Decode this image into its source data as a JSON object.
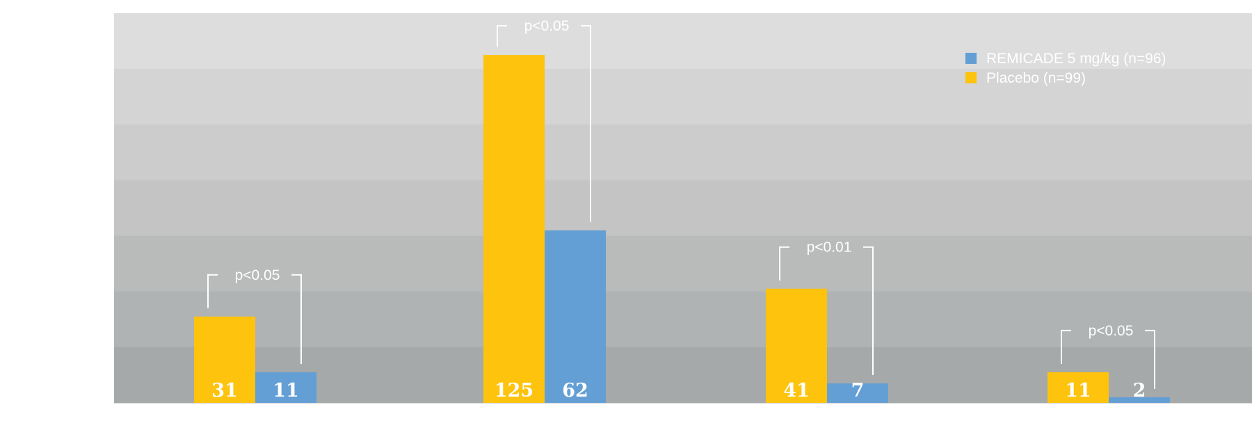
{
  "chart_data": {
    "type": "bar",
    "title": "",
    "xlabel": "",
    "ylabel": "",
    "ylim": [
      0,
      140
    ],
    "grid": true,
    "legend_position": "top-right",
    "groups": 4,
    "series": [
      {
        "name": "Placebo (n=99)",
        "color": "#FDC30D",
        "values": [
          31,
          125,
          41,
          11
        ]
      },
      {
        "name": "REMICADE 5 mg/kg (n=96)",
        "color": "#639FD5",
        "values": [
          11,
          62,
          7,
          2
        ]
      }
    ],
    "legend_order": [
      1,
      0
    ],
    "value_labels": [
      [
        "31",
        "11"
      ],
      [
        "125",
        "62"
      ],
      [
        "41",
        "7"
      ],
      [
        "11",
        "2"
      ]
    ],
    "significance": [
      "p<0.05",
      "p<0.05",
      "p<0.01",
      "p<0.05"
    ]
  }
}
